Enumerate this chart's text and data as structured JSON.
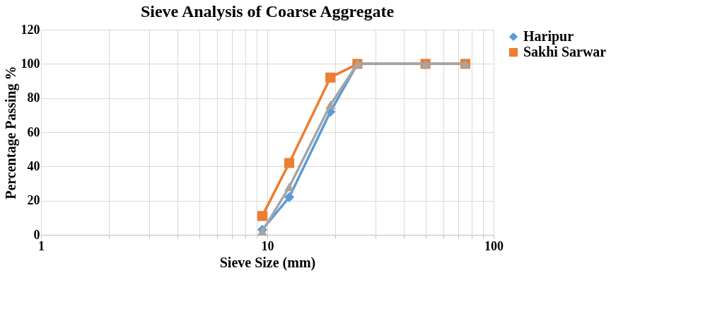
{
  "chart_data": {
    "type": "line",
    "title": "Sieve Analysis of Coarse Aggregate",
    "xlabel": "Sieve Size (mm)",
    "ylabel": "Percentage Passing %",
    "log": "x",
    "x": [
      9.5,
      12.5,
      19,
      25,
      50,
      75
    ],
    "series": [
      {
        "name": "Haripur",
        "color": "#5b9bd5",
        "marker": "diamond",
        "values": [
          3,
          22,
          72,
          100,
          100,
          100
        ]
      },
      {
        "name": "Sakhi Sarwar",
        "color": "#ed7d31",
        "marker": "square",
        "values": [
          11,
          42,
          92,
          100,
          100,
          100
        ]
      },
      {
        "color": "#a5a5a5",
        "marker": "triangle",
        "values": [
          2,
          28,
          76,
          100,
          100,
          100
        ]
      }
    ],
    "xlim": [
      1,
      100
    ],
    "xticks": [
      1,
      {
        "value": 2,
        "label": null
      },
      {
        "value": 3,
        "label": null
      },
      {
        "value": 4,
        "label": null
      },
      {
        "value": 5,
        "label": null
      },
      {
        "value": 6,
        "label": null
      },
      {
        "value": 7,
        "label": null
      },
      {
        "value": 8,
        "label": null
      },
      {
        "value": 9,
        "label": null
      },
      10,
      {
        "value": 20,
        "label": null
      },
      {
        "value": 30,
        "label": null
      },
      {
        "value": 40,
        "label": null
      },
      {
        "value": 50,
        "label": null
      },
      {
        "value": 60,
        "label": null
      },
      {
        "value": 70,
        "label": null
      },
      {
        "value": 80,
        "label": null
      },
      {
        "value": 90,
        "label": null
      },
      100
    ],
    "ylim": [
      0,
      120
    ],
    "yticks": [
      0,
      20,
      40,
      60,
      80,
      100,
      120
    ],
    "grid": true,
    "legend": "right",
    "line_style": "solid"
  }
}
